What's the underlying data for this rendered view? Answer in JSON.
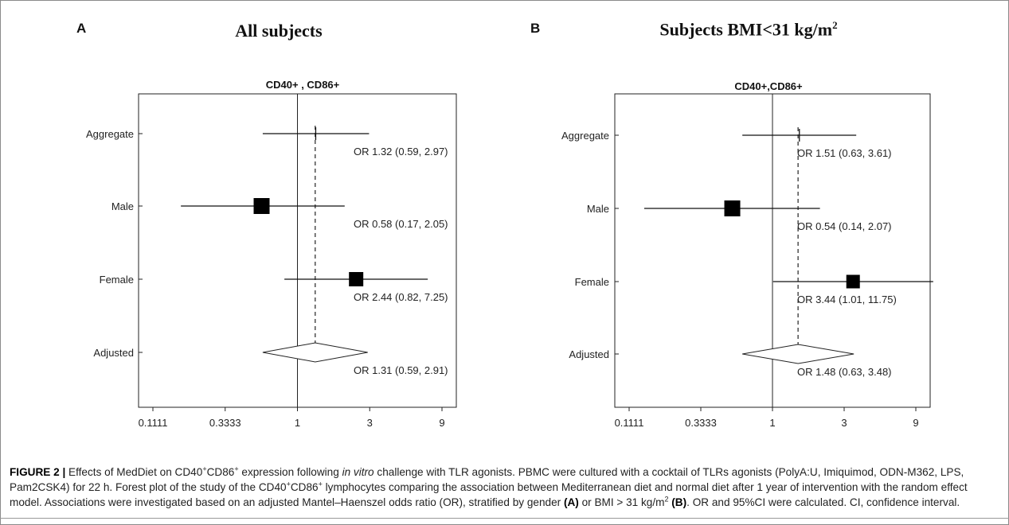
{
  "panels": [
    {
      "letter": "A",
      "title": "All subjects",
      "subtitle": "CD40+ , CD86+"
    },
    {
      "letter": "B",
      "title": "Subjects BMI<31 kg/m",
      "title_sup": "2",
      "subtitle": "CD40+,CD86+"
    }
  ],
  "chart_data": [
    {
      "type": "forest",
      "panel": "A",
      "title": "All subjects",
      "subtitle": "CD40+ , CD86+",
      "x_scale": "log",
      "xlim": [
        0.1111,
        9
      ],
      "xticks": [
        0.1111,
        0.3333,
        1,
        3,
        9
      ],
      "xtick_labels": [
        "0.1111",
        "0.3333",
        "1",
        "3",
        "9"
      ],
      "null_line": 1,
      "rows": [
        {
          "label": "Aggregate",
          "or": 1.32,
          "lo": 0.59,
          "hi": 2.97,
          "weight": 0,
          "text": "OR 1.32   (0.59, 2.97)"
        },
        {
          "label": "Male",
          "or": 0.58,
          "lo": 0.17,
          "hi": 2.05,
          "weight": 1.0,
          "text": "OR 0.58   (0.17, 2.05)"
        },
        {
          "label": "Female",
          "or": 2.44,
          "lo": 0.82,
          "hi": 7.25,
          "weight": 0.8,
          "text": "OR 2.44   (0.82, 7.25)"
        },
        {
          "label": "Adjusted",
          "or": 1.31,
          "lo": 0.59,
          "hi": 2.91,
          "diamond": true,
          "text": "OR 1.31   (0.59, 2.91)"
        }
      ]
    },
    {
      "type": "forest",
      "panel": "B",
      "title": "Subjects BMI<31 kg/m2",
      "subtitle": "CD40+,CD86+",
      "x_scale": "log",
      "xlim": [
        0.1111,
        9
      ],
      "xticks": [
        0.1111,
        0.3333,
        1,
        3,
        9
      ],
      "xtick_labels": [
        "0.1111",
        "0.3333",
        "1",
        "3",
        "9"
      ],
      "null_line": 1,
      "rows": [
        {
          "label": "Aggregate",
          "or": 1.51,
          "lo": 0.63,
          "hi": 3.61,
          "weight": 0,
          "text": "OR 1.51   (0.63, 3.61)"
        },
        {
          "label": "Male",
          "or": 0.54,
          "lo": 0.14,
          "hi": 2.07,
          "weight": 1.0,
          "text": "OR 0.54   (0.14, 2.07)"
        },
        {
          "label": "Female",
          "or": 3.44,
          "lo": 1.01,
          "hi": 11.75,
          "weight": 0.7,
          "text": "OR 3.44   (1.01, 11.75)"
        },
        {
          "label": "Adjusted",
          "or": 1.48,
          "lo": 0.63,
          "hi": 3.48,
          "diamond": true,
          "text": "OR 1.48   (0.63, 3.48)"
        }
      ]
    }
  ],
  "caption": {
    "label": "FIGURE 2 |",
    "t1": " Effects of MedDiet on CD40",
    "sup1": "+",
    "t2": "CD86",
    "sup2": "+",
    "t3": " expression following ",
    "italic": "in vitro",
    "t4": " challenge with TLR agonists. PBMC were cultured with a cocktail of TLRs agonists (PolyA:U, Imiquimod, ODN-M362, LPS, Pam2CSK4) for 22 h. Forest plot of the study of the CD40",
    "sup3": "+",
    "t5": "CD86",
    "sup4": "+",
    "t6": " lymphocytes comparing the association between Mediterranean diet and normal diet after 1 year of intervention with the random effect model. Associations were investigated based on an adjusted Mantel–Haenszel odds ratio (OR), stratified by gender ",
    "bold_a": "(A)",
    "t7": " or BMI > 31 kg/m",
    "sup5": "2",
    "t8": " ",
    "bold_b": "(B)",
    "t9": ". OR and 95%CI were calculated. CI, confidence interval."
  }
}
